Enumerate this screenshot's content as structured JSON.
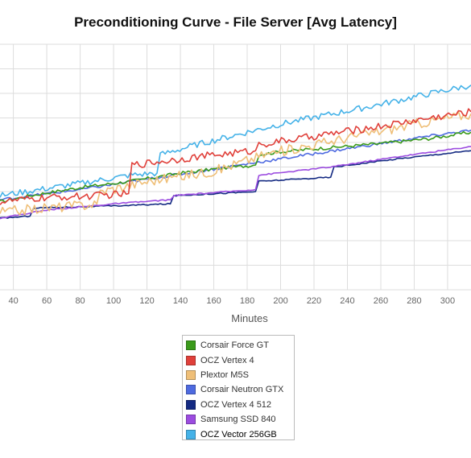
{
  "chart_data": {
    "type": "line",
    "title": "Preconditioning Curve - File Server [Avg Latency]",
    "xlabel": "Minutes",
    "ylabel": "",
    "xlim": [
      32,
      314
    ],
    "ylim": [
      0,
      12
    ],
    "xticks": [
      40,
      60,
      80,
      100,
      120,
      140,
      160,
      180,
      200,
      220,
      240,
      260,
      280,
      300
    ],
    "grid": true,
    "legend_position": "bottom",
    "series": [
      {
        "name": "Corsair Force GT",
        "color": "#3a9a1a",
        "x": [
          32,
          50,
          80,
          110,
          140,
          160,
          185,
          187,
          200,
          230,
          260,
          290,
          314
        ],
        "y": [
          4.3,
          4.6,
          5.0,
          5.3,
          5.7,
          5.9,
          6.1,
          6.6,
          6.75,
          6.95,
          7.15,
          7.4,
          7.7
        ]
      },
      {
        "name": "OCZ Vertex 4",
        "color": "#e0403a",
        "x": [
          32,
          60,
          90,
          109,
          111,
          150,
          185,
          187,
          220,
          260,
          290,
          314
        ],
        "y": [
          4.3,
          4.5,
          4.6,
          4.7,
          6.1,
          6.5,
          6.8,
          7.1,
          7.5,
          8.0,
          8.4,
          8.7
        ]
      },
      {
        "name": "Plextor M5S",
        "color": "#efbf78",
        "x": [
          32,
          60,
          90,
          92,
          120,
          160,
          190,
          220,
          250,
          280,
          314
        ],
        "y": [
          3.8,
          4.0,
          4.2,
          4.8,
          5.3,
          5.8,
          6.6,
          7.1,
          7.6,
          8.1,
          8.6
        ]
      },
      {
        "name": "Corsair Neutron GTX",
        "color": "#4e6ae0",
        "x": [
          32,
          80,
          120,
          160,
          200,
          240,
          280,
          314
        ],
        "y": [
          4.4,
          4.9,
          5.4,
          5.9,
          6.4,
          6.9,
          7.4,
          7.8
        ]
      },
      {
        "name": "OCZ Vertex 4 512",
        "color": "#142a82",
        "x": [
          32,
          50,
          52,
          100,
          134,
          136,
          185,
          187,
          230,
          232,
          270,
          314
        ],
        "y": [
          3.5,
          3.6,
          4.0,
          4.1,
          4.2,
          4.6,
          4.8,
          5.3,
          5.5,
          6.0,
          6.4,
          6.8
        ]
      },
      {
        "name": "Samsung SSD 840",
        "color": "#9c4ce0",
        "x": [
          32,
          60,
          100,
          134,
          136,
          185,
          187,
          230,
          270,
          314
        ],
        "y": [
          3.5,
          3.9,
          4.2,
          4.4,
          4.6,
          4.9,
          5.6,
          6.0,
          6.5,
          7.0
        ]
      },
      {
        "name": "OCZ Vector 256GB",
        "color": "#45b2e8",
        "x": [
          32,
          80,
          110,
          126,
          128,
          150,
          200,
          250,
          290,
          314
        ],
        "y": [
          4.6,
          5.2,
          5.6,
          5.7,
          6.6,
          7.1,
          8.1,
          8.9,
          9.6,
          10.0
        ]
      }
    ]
  }
}
